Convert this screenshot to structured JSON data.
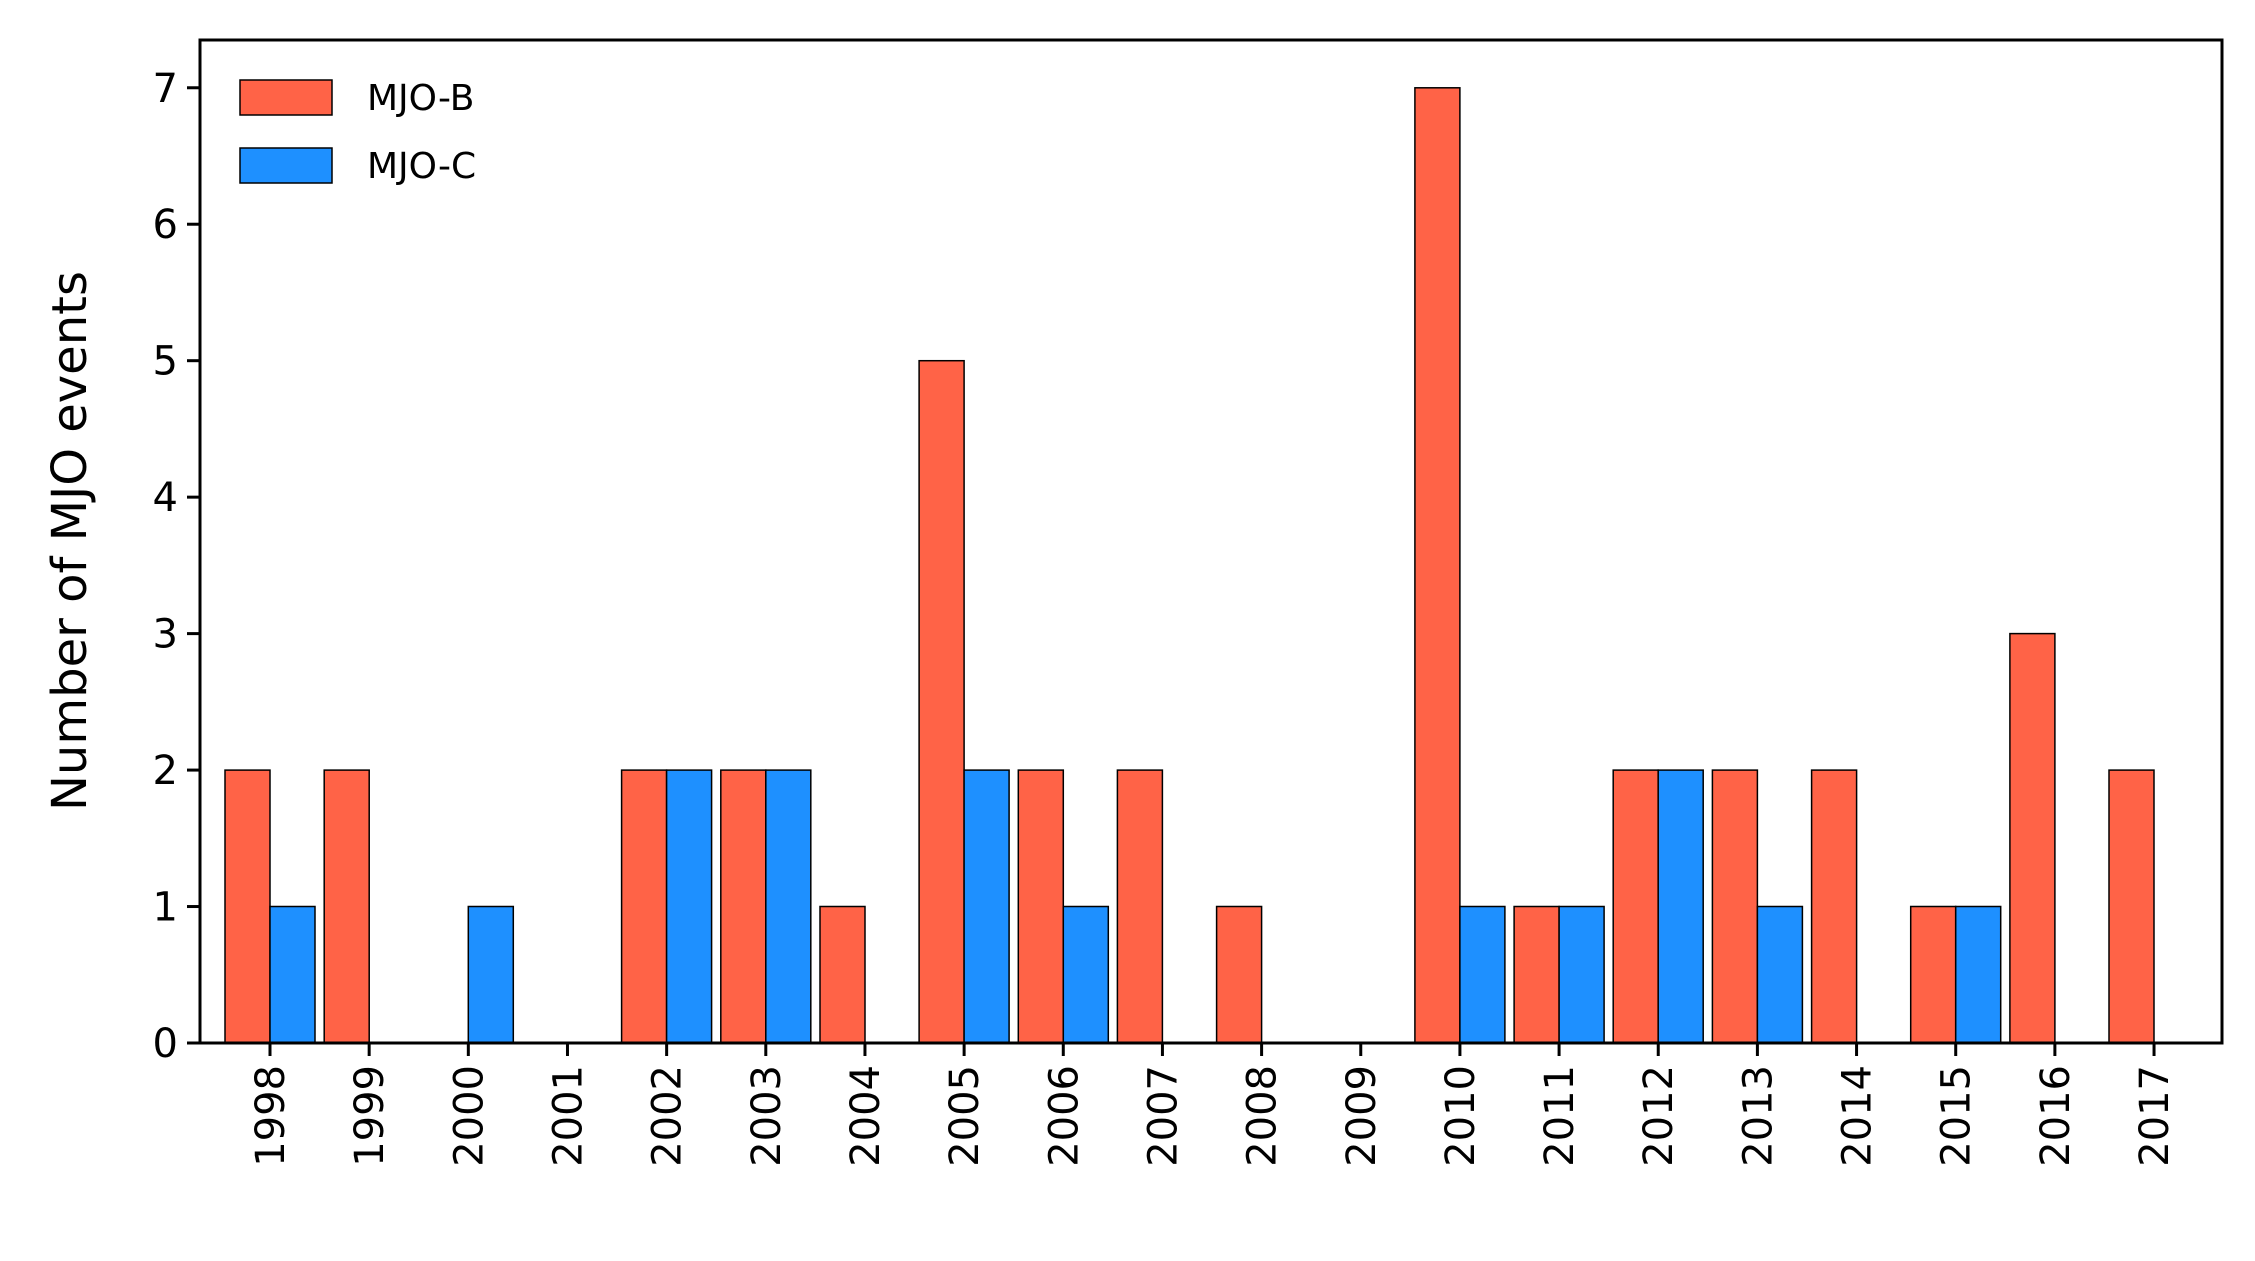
{
  "chart_data": {
    "type": "bar",
    "title": "",
    "xlabel": "",
    "ylabel": "Number of MJO events",
    "ylim": [
      0,
      7.35
    ],
    "yticks": [
      0,
      1,
      2,
      3,
      4,
      5,
      6,
      7
    ],
    "grid": false,
    "legend_position": "top-left",
    "categories": [
      "1998",
      "1999",
      "2000",
      "2001",
      "2002",
      "2003",
      "2004",
      "2005",
      "2006",
      "2007",
      "2008",
      "2009",
      "2010",
      "2011",
      "2012",
      "2013",
      "2014",
      "2015",
      "2016",
      "2017"
    ],
    "series": [
      {
        "name": "MJO-B",
        "color": "#ff6347",
        "values": [
          2,
          2,
          0,
          0,
          2,
          2,
          1,
          5,
          2,
          2,
          1,
          0,
          7,
          1,
          2,
          2,
          2,
          1,
          3,
          2
        ]
      },
      {
        "name": "MJO-C",
        "color": "#1e90ff",
        "values": [
          1,
          0,
          1,
          0,
          2,
          2,
          0,
          2,
          1,
          0,
          0,
          0,
          1,
          1,
          2,
          1,
          0,
          1,
          0,
          0
        ]
      }
    ]
  }
}
